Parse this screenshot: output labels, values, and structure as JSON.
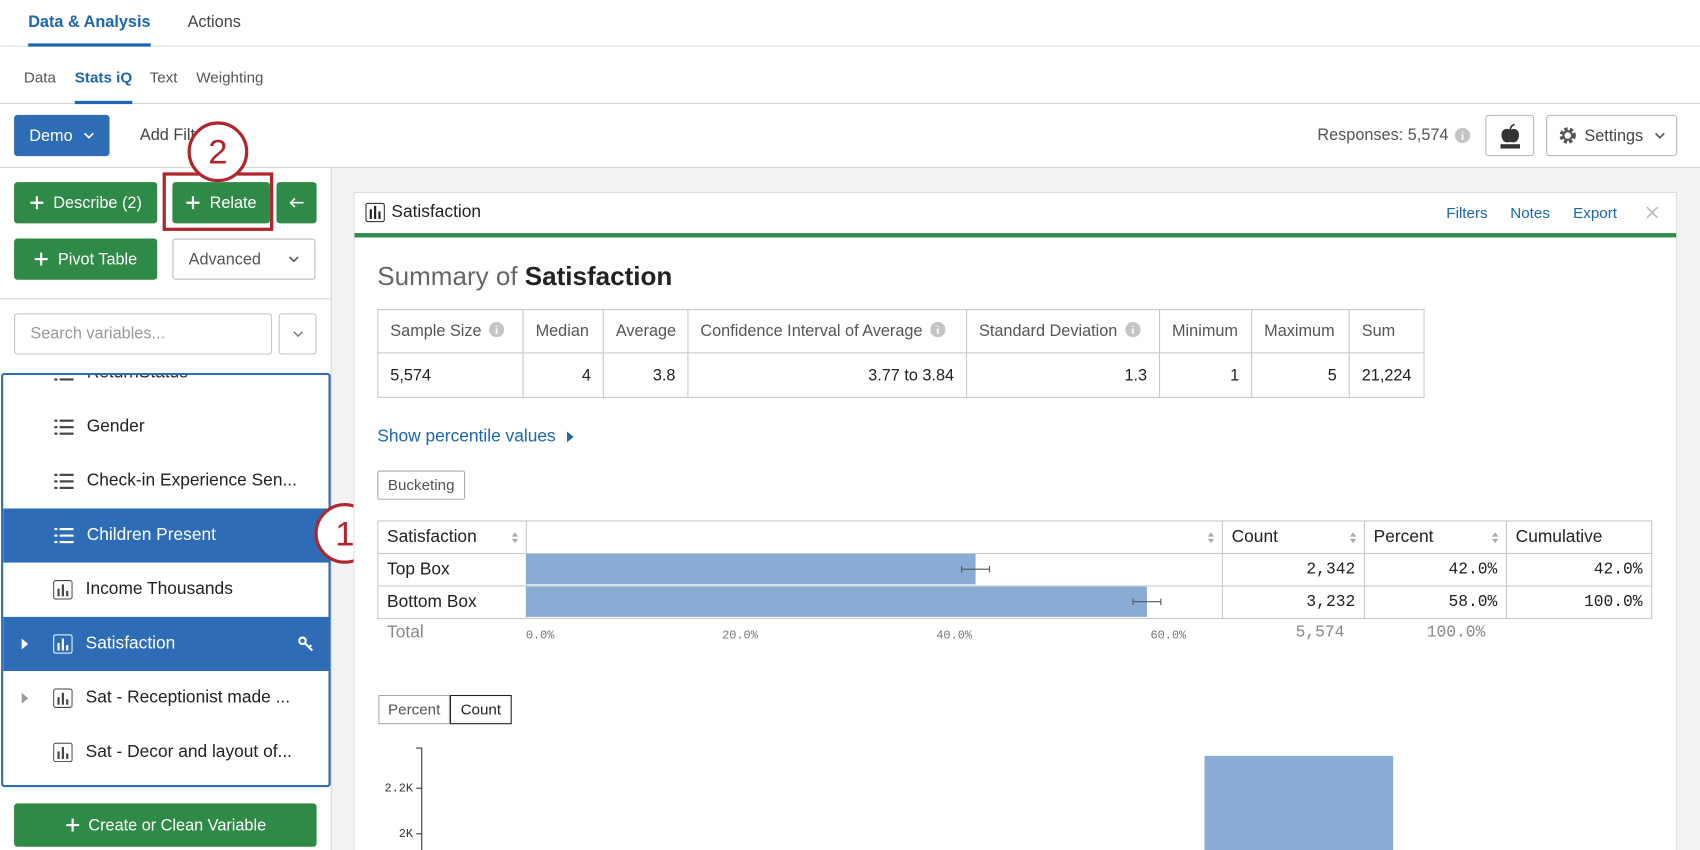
{
  "nav": {
    "tabs": [
      "Data & Analysis",
      "Actions"
    ],
    "subtabs": [
      "Data",
      "Stats iQ",
      "Text",
      "Weighting"
    ]
  },
  "toolbar": {
    "dataset": "Demo",
    "add_filter": "Add Filter",
    "responses": "Responses: 5,574",
    "settings": "Settings"
  },
  "sidebar": {
    "describe": "Describe (2)",
    "relate": "Relate",
    "pivot_table": "Pivot Table",
    "advanced": "Advanced",
    "search_placeholder": "Search variables...",
    "variables": [
      "ReturnStatus",
      "Gender",
      "Check-in Experience Sen...",
      "Children Present",
      "Income Thousands",
      "Satisfaction",
      "Sat - Receptionist made ...",
      "Sat - Decor and layout of..."
    ],
    "create_variable": "Create or Clean Variable"
  },
  "annotations": [
    "1",
    "2"
  ],
  "panel": {
    "title": "Satisfaction",
    "actions": [
      "Filters",
      "Notes",
      "Export"
    ],
    "summary_prefix": "Summary of",
    "summary_variable": "Satisfaction",
    "summary_table": {
      "headers": [
        "Sample Size",
        "Median",
        "Average",
        "Confidence Interval of Average",
        "Standard Deviation",
        "Minimum",
        "Maximum",
        "Sum"
      ],
      "values": [
        "5,574",
        "4",
        "3.8",
        "3.77 to 3.84",
        "1.3",
        "1",
        "5",
        "21,224"
      ]
    },
    "percentile_link": "Show percentile values",
    "bucketing": "Bucketing",
    "bucket_table": {
      "headers": [
        "Satisfaction",
        "Count",
        "Percent",
        "Cumulative"
      ],
      "rows": [
        [
          "Top Box",
          "2,342",
          "42.0%",
          "42.0%"
        ],
        [
          "Bottom Box",
          "3,232",
          "58.0%",
          "100.0%"
        ]
      ],
      "total": [
        "Total",
        "5,574",
        "100.0%"
      ]
    },
    "toggles": [
      "Percent",
      "Count"
    ]
  },
  "chart_data": [
    {
      "type": "hbar",
      "values": [
        42.0,
        58.0
      ],
      "errors": [
        1.3,
        1.3
      ],
      "color": "#8aabd4",
      "xlim": [
        0,
        65
      ],
      "xticks": [
        {
          "value": 0,
          "label": "0.0%"
        },
        {
          "value": 20,
          "label": "20.0%"
        },
        {
          "value": 40,
          "label": "40.0%"
        },
        {
          "value": 60,
          "label": "60.0%"
        }
      ]
    },
    {
      "type": "bar",
      "values": [
        2342
      ],
      "color": "#8aabd4",
      "ylim": [
        1929,
        2376
      ],
      "yticks": [
        {
          "value": 2000,
          "label": "2K"
        },
        {
          "value": 2200,
          "label": "2.2K"
        }
      ]
    }
  ]
}
